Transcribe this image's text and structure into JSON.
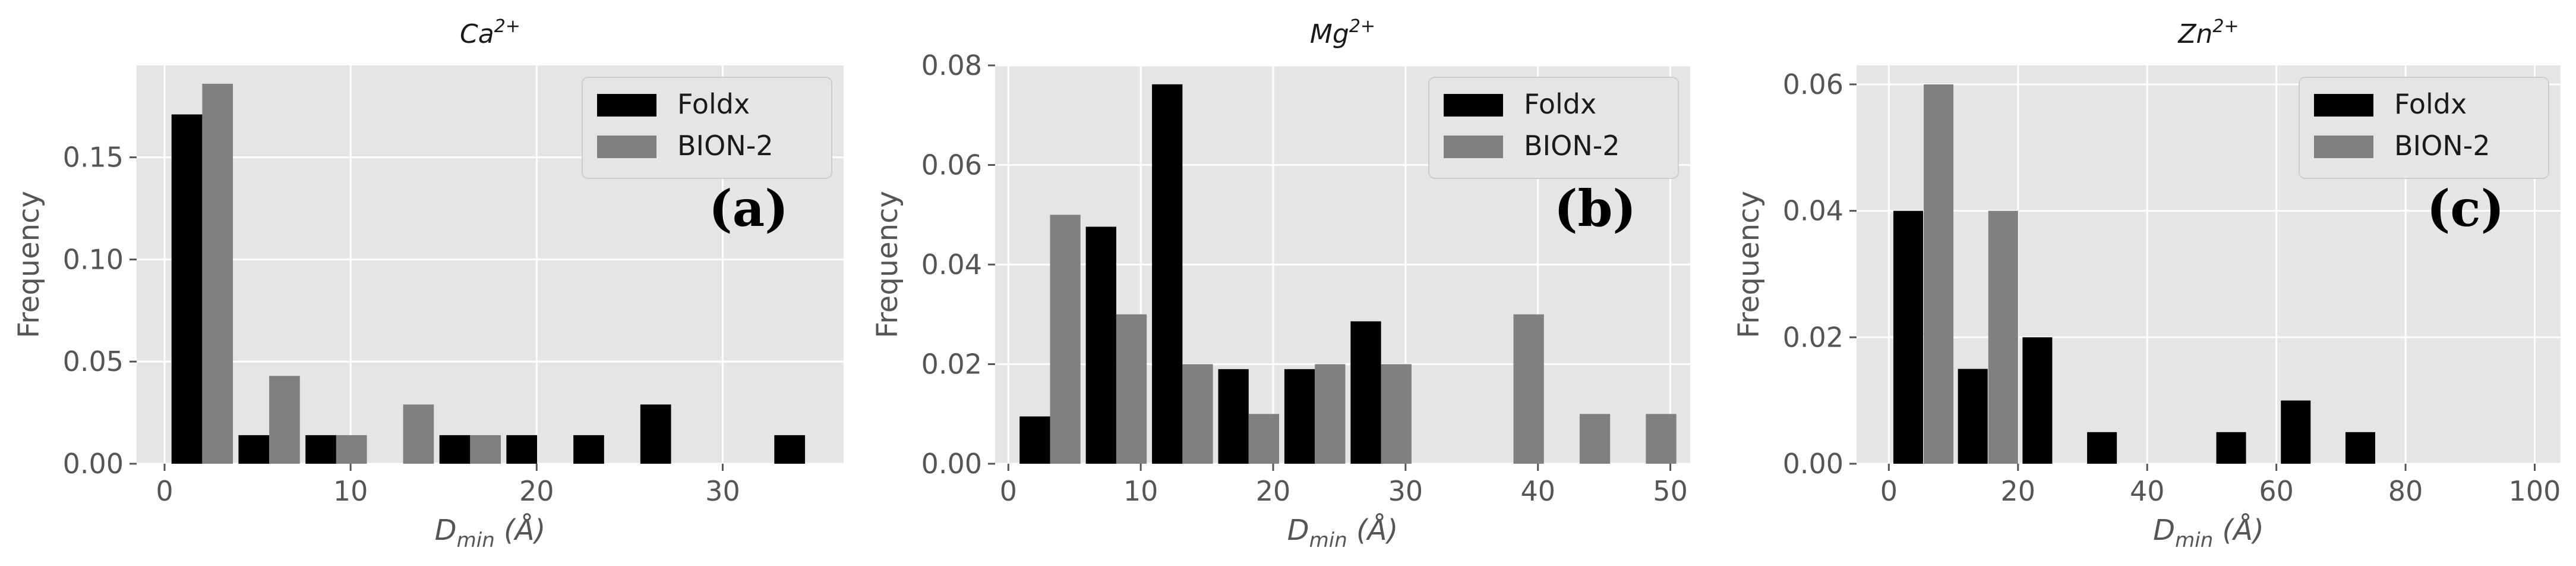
{
  "chart_data": [
    {
      "type": "bar",
      "title": "Ca",
      "title_sup": "2+",
      "xlabel": "D",
      "xlabel_sub": "min",
      "xlabel_unit": " (Å)",
      "ylabel": "Frequency",
      "xlim": [
        -1.5,
        36.5
      ],
      "ylim": [
        0,
        0.195
      ],
      "bar_width": 1.65,
      "xticks": [
        0,
        10,
        20,
        30
      ],
      "yticks": [
        0.0,
        0.05,
        0.1,
        0.15
      ],
      "ytick_labels": [
        "0.00",
        "0.05",
        "0.10",
        "0.15"
      ],
      "grid": true,
      "legend": "top-right",
      "panel_label": "(a)",
      "series": [
        {
          "name": "Foldx",
          "color": "#000000",
          "x": [
            1.2,
            4.8,
            8.4,
            15.6,
            19.2,
            22.8,
            26.4,
            33.6
          ],
          "values": [
            0.171,
            0.014,
            0.014,
            0.014,
            0.014,
            0.014,
            0.029,
            0.014
          ]
        },
        {
          "name": "BION-2",
          "color": "#808080",
          "x": [
            2.85,
            6.45,
            10.05,
            13.65,
            17.25
          ],
          "values": [
            0.186,
            0.043,
            0.014,
            0.029,
            0.014
          ]
        }
      ]
    },
    {
      "type": "bar",
      "title": "Mg",
      "title_sup": "2+",
      "xlabel": "D",
      "xlabel_sub": "min",
      "xlabel_unit": " (Å)",
      "ylabel": "Frequency",
      "xlim": [
        -1,
        51.5
      ],
      "ylim": [
        0,
        0.08
      ],
      "bar_width": 2.3,
      "xticks": [
        0,
        10,
        20,
        30,
        40,
        50
      ],
      "yticks": [
        0.0,
        0.02,
        0.04,
        0.06,
        0.08
      ],
      "ytick_labels": [
        "0.00",
        "0.02",
        "0.04",
        "0.06",
        "0.08"
      ],
      "grid": true,
      "legend": "top-right",
      "panel_label": "(b)",
      "series": [
        {
          "name": "Foldx",
          "color": "#000000",
          "x": [
            2.0,
            7.0,
            12.0,
            17.0,
            22.0,
            27.0
          ],
          "values": [
            0.0095,
            0.0476,
            0.0762,
            0.019,
            0.019,
            0.0286
          ]
        },
        {
          "name": "BION-2",
          "color": "#808080",
          "x": [
            4.3,
            9.3,
            14.3,
            19.3,
            24.3,
            29.3,
            39.3,
            44.3,
            49.3
          ],
          "values": [
            0.05,
            0.03,
            0.02,
            0.01,
            0.02,
            0.02,
            0.03,
            0.01,
            0.01
          ]
        }
      ]
    },
    {
      "type": "bar",
      "title": "Zn",
      "title_sup": "2+",
      "xlabel": "D",
      "xlabel_sub": "min",
      "xlabel_unit": " (Å)",
      "ylabel": "Frequency",
      "xlim": [
        -5,
        104
      ],
      "ylim": [
        0,
        0.063
      ],
      "bar_width": 4.6,
      "xticks": [
        0,
        20,
        40,
        60,
        80,
        100
      ],
      "yticks": [
        0.0,
        0.02,
        0.04,
        0.06
      ],
      "ytick_labels": [
        "0.00",
        "0.02",
        "0.04",
        "0.06"
      ],
      "grid": true,
      "legend": "top-right",
      "panel_label": "(c)",
      "series": [
        {
          "name": "Foldx",
          "color": "#000000",
          "x": [
            3.0,
            13.0,
            23.0,
            33.0,
            53.0,
            63.0,
            73.0
          ],
          "values": [
            0.04,
            0.015,
            0.02,
            0.005,
            0.005,
            0.01,
            0.005
          ]
        },
        {
          "name": "BION-2",
          "color": "#808080",
          "x": [
            7.7,
            17.7
          ],
          "values": [
            0.06,
            0.04
          ]
        }
      ]
    }
  ]
}
